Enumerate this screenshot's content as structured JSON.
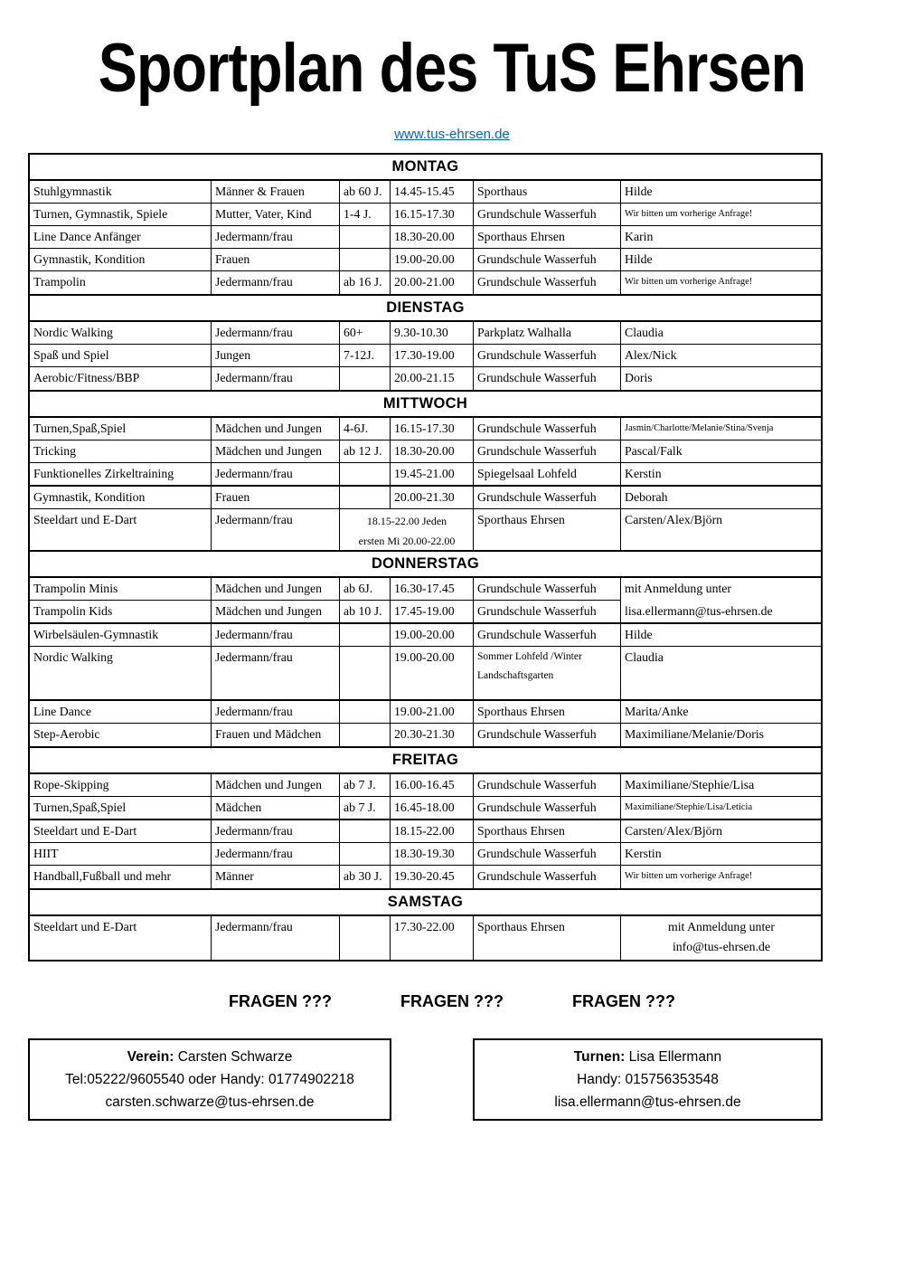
{
  "page": {
    "title": "Sportplan des TuS Ehrsen",
    "website": "www.tus-ehrsen.de",
    "link_color": "#0563c1"
  },
  "questions": [
    "FRAGEN ???",
    "FRAGEN ???",
    "FRAGEN ???"
  ],
  "schedule": {
    "sections": [
      {
        "day": "MONTAG",
        "rows": [
          {
            "activity": "Stuhlgymnastik",
            "group": "Männer & Frauen",
            "age": "ab 60 J.",
            "time": "14.45-15.45",
            "location": "Sporthaus",
            "contact": "Hilde"
          },
          {
            "activity": "Turnen, Gymnastik, Spiele",
            "group": "Mutter, Vater, Kind",
            "age": "1-4 J.",
            "time": "16.15-17.30",
            "location": "Grundschule Wasserfuh",
            "contact": "Wir bitten um vorherige Anfrage!",
            "contact_small": true
          },
          {
            "activity": "Line Dance Anfänger",
            "group": "Jedermann/frau",
            "age": "",
            "time": "18.30-20.00",
            "location": "Sporthaus Ehrsen",
            "contact": "Karin"
          },
          {
            "activity": "Gymnastik, Kondition",
            "group": "Frauen",
            "age": "",
            "time": "19.00-20.00",
            "location": "Grundschule Wasserfuh",
            "contact": "Hilde"
          },
          {
            "activity": "Trampolin",
            "group": "Jedermann/frau",
            "age": "ab 16 J.",
            "time": "20.00-21.00",
            "location": "Grundschule Wasserfuh",
            "contact": "Wir bitten um vorherige Anfrage!",
            "contact_small": true
          }
        ]
      },
      {
        "day": "DIENSTAG",
        "rows": [
          {
            "activity": "Nordic Walking",
            "group": "Jedermann/frau",
            "age": "60+",
            "time": "9.30-10.30",
            "location": "Parkplatz Walhalla",
            "contact": "Claudia"
          },
          {
            "activity": "Spaß und Spiel",
            "group": "Jungen",
            "age": "7-12J.",
            "time": "17.30-19.00",
            "location": "Grundschule Wasserfuh",
            "contact": "Alex/Nick"
          },
          {
            "activity": "Aerobic/Fitness/BBP",
            "group": "Jedermann/frau",
            "age": "",
            "time": "20.00-21.15",
            "location": "Grundschule Wasserfuh",
            "contact": "Doris"
          }
        ]
      },
      {
        "day": "MITTWOCH",
        "rows": [
          {
            "activity": "Turnen,Spaß,Spiel",
            "group": "Mädchen und Jungen",
            "age": "4-6J.",
            "time": "16.15-17.30",
            "location": "Grundschule Wasserfuh",
            "contact": "Jasmin/Charlotte/Melanie/Stina/Svenja",
            "contact_small": true
          },
          {
            "activity": "Tricking",
            "group": "Mädchen und Jungen",
            "age": "ab 12 J.",
            "time": "18.30-20.00",
            "location": "Grundschule Wasserfuh",
            "contact": "Pascal/Falk"
          },
          {
            "activity": "Funktionelles Zirkeltraining",
            "group": "Jedermann/frau",
            "age": "",
            "time": "19.45-21.00",
            "location": "Spiegelsaal Lohfeld",
            "contact": "Kerstin"
          },
          {
            "activity": "Gymnastik, Kondition",
            "group": "Frauen",
            "age": "",
            "time": "20.00-21.30",
            "location": "Grundschule Wasserfuh",
            "contact": "Deborah",
            "thick_top": true
          },
          {
            "activity": "Steeldart und E-Dart",
            "group": "Jedermann/frau",
            "time_merged": [
              "18.15-22.00  Jeden",
              "ersten Mi 20.00-22.00"
            ],
            "location": "Sporthaus Ehrsen",
            "contact": "Carsten/Alex/Björn"
          }
        ]
      },
      {
        "day": "DONNERSTAG",
        "rows": [
          {
            "activity": "Trampolin Minis",
            "group": "Mädchen und Jungen",
            "age": "ab 6J.",
            "time": "16.30-17.45",
            "location": "Grundschule Wasserfuh",
            "contact": "mit Anmeldung unter",
            "contact_no_bottom": true
          },
          {
            "activity": "Trampolin Kids",
            "group": "Mädchen und Jungen",
            "age": "ab 10 J.",
            "time": "17.45-19.00",
            "location": "Grundschule Wasserfuh",
            "contact": "lisa.ellermann@tus-ehrsen.de"
          },
          {
            "activity": "Wirbelsäulen-Gymnastik",
            "group": "Jedermann/frau",
            "age": "",
            "time": "19.00-20.00",
            "location": "Grundschule Wasserfuh",
            "contact": "Hilde",
            "thick_top": true
          },
          {
            "activity": "Nordic Walking",
            "group": "Jedermann/frau",
            "age": "",
            "time": "19.00-20.00",
            "location_lines": [
              "Sommer Lohfeld /Winter",
              "Landschaftsgarten"
            ],
            "contact": "Claudia"
          },
          {
            "activity": "Line Dance",
            "group": "Jedermann/frau",
            "age": "",
            "time": "19.00-21.00",
            "location": "Sporthaus Ehrsen",
            "contact": "Marita/Anke",
            "thick_top": true
          },
          {
            "activity": "Step-Aerobic",
            "group": "Frauen und Mädchen",
            "age": "",
            "time": "20.30-21.30",
            "location": "Grundschule Wasserfuh",
            "contact": "Maximiliane/Melanie/Doris"
          }
        ]
      },
      {
        "day": "FREITAG",
        "rows": [
          {
            "activity": "Rope-Skipping",
            "group": "Mädchen und Jungen",
            "age": "ab 7 J.",
            "time": "16.00-16.45",
            "location": "Grundschule Wasserfuh",
            "contact": "Maximiliane/Stephie/Lisa"
          },
          {
            "activity": "Turnen,Spaß,Spiel",
            "group": "Mädchen",
            "age": "ab 7 J.",
            "time": "16.45-18.00",
            "location": "Grundschule Wasserfuh",
            "contact": "Maximiliane/Stephie/Lisa/Leticia",
            "contact_small": true
          },
          {
            "activity": "Steeldart und E-Dart",
            "group": "Jedermann/frau",
            "age": "",
            "time": "18.15-22.00",
            "location": "Sporthaus Ehrsen",
            "contact": "Carsten/Alex/Björn",
            "thick_top": true
          },
          {
            "activity": "HIIT",
            "group": "Jedermann/frau",
            "age": "",
            "time": "18.30-19.30",
            "location": "Grundschule Wasserfuh",
            "contact": "Kerstin"
          },
          {
            "activity": "Handball,Fußball und mehr",
            "group": "Männer",
            "age": "ab 30 J.",
            "time": "19.30-20.45",
            "location": "Grundschule Wasserfuh",
            "contact": "Wir bitten um vorherige Anfrage!",
            "contact_small": true
          }
        ]
      },
      {
        "day": "SAMSTAG",
        "rows": [
          {
            "activity": "Steeldart und E-Dart",
            "group": "Jedermann/frau",
            "age": "",
            "time": "17.30-22.00",
            "location": "Sporthaus Ehrsen",
            "contact_lines": [
              "mit Anmeldung unter",
              "info@tus-ehrsen.de"
            ],
            "contact_center": true
          }
        ]
      }
    ]
  },
  "contacts": [
    {
      "role_label": "Verein:",
      "name": "Carsten Schwarze",
      "phone": "Tel:05222/9605540 oder Handy: 01774902218",
      "email": "carsten.schwarze@tus-ehrsen.de"
    },
    {
      "role_label": "Turnen:",
      "name": "Lisa Ellermann",
      "phone": "Handy: 015756353548",
      "email": "lisa.ellermann@tus-ehrsen.de"
    }
  ]
}
